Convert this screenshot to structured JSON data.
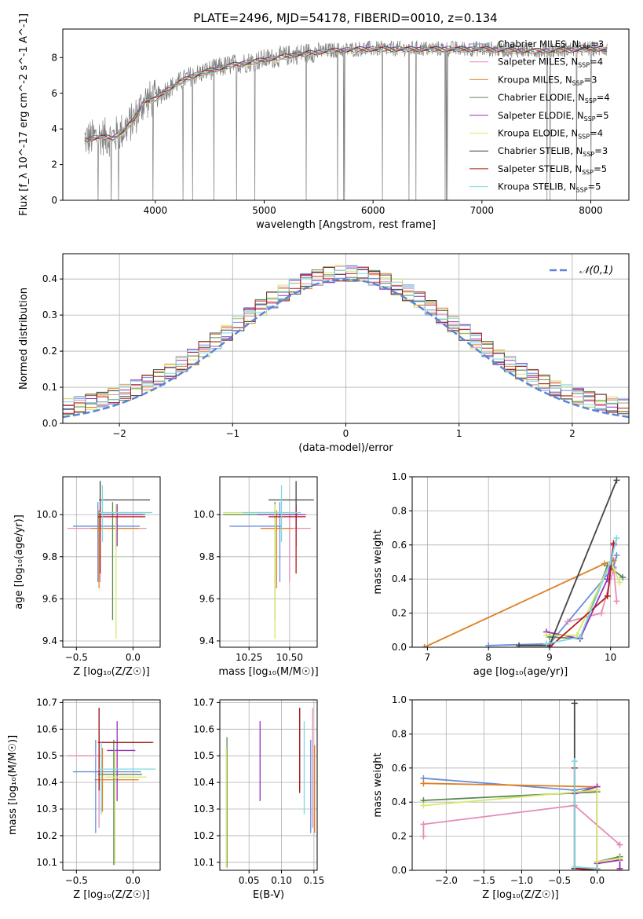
{
  "figure": {
    "title": "PLATE=2496, MJD=54178, FIBERID=0010, z=0.134"
  },
  "models": [
    {
      "name": "Chabrier MILES",
      "nssp": "3",
      "color": "#6a8fdb"
    },
    {
      "name": "Salpeter MILES",
      "nssp": "4",
      "color": "#e58bb8"
    },
    {
      "name": "Kroupa MILES",
      "nssp": "3",
      "color": "#e07f22"
    },
    {
      "name": "Chabrier ELODIE",
      "nssp": "4",
      "color": "#5c8a55"
    },
    {
      "name": "Salpeter ELODIE",
      "nssp": "5",
      "color": "#9a2fb8"
    },
    {
      "name": "Kroupa ELODIE",
      "nssp": "4",
      "color": "#d9e86a"
    },
    {
      "name": "Chabrier STELIB",
      "nssp": "3",
      "color": "#444444"
    },
    {
      "name": "Salpeter STELIB",
      "nssp": "5",
      "color": "#b01a1a"
    },
    {
      "name": "Kroupa STELIB",
      "nssp": "5",
      "color": "#7fd8e0"
    }
  ],
  "chart_data": [
    {
      "id": "spectrum",
      "type": "line",
      "xlabel": "wavelength [Angstrom, rest frame]",
      "ylabel": "Flux [f_λ 10^-17 erg cm^-2 s^-1 A^-1]",
      "xlim": [
        3150,
        8350
      ],
      "ylim": [
        0,
        9.6
      ],
      "xticks": [
        4000,
        5000,
        6000,
        7000,
        8000
      ],
      "yticks": [
        0,
        2,
        4,
        6,
        8
      ],
      "data_color": "#808080",
      "data_wavelength_range": [
        3350,
        8150
      ],
      "continuum": {
        "x": [
          3350,
          3500,
          3600,
          3700,
          3800,
          3900,
          4000,
          4100,
          4300,
          4500,
          4700,
          5000,
          5300,
          5600,
          5900,
          6200,
          6600,
          7000,
          7500,
          8000,
          8100
        ],
        "y": [
          3.4,
          3.6,
          3.5,
          3.9,
          4.5,
          5.6,
          5.7,
          6.2,
          6.9,
          7.3,
          7.6,
          7.9,
          8.2,
          8.4,
          8.5,
          8.5,
          8.5,
          8.5,
          8.4,
          8.5,
          8.5
        ]
      },
      "legend_loc": "upper right",
      "grid": false
    },
    {
      "id": "residuals",
      "type": "histogram",
      "xlabel": "(data-model)/error",
      "ylabel": "Normed distribution",
      "xlim": [
        -2.5,
        2.5
      ],
      "ylim": [
        0,
        0.47
      ],
      "xticks": [
        -2,
        -1,
        0,
        1,
        2
      ],
      "yticks": [
        0.0,
        0.1,
        0.2,
        0.3,
        0.4
      ],
      "reference": {
        "label": "𝒩(0,1)",
        "mean": 0,
        "sigma": 1,
        "color": "#5b86d6"
      },
      "legend_loc": "upper right",
      "grid": true
    },
    {
      "id": "age_vs_Z",
      "type": "errorbar",
      "xlabel": "Z [log₁₀(Z/Z☉)]",
      "ylabel": "age  [log₁₀(age/yr)]",
      "xlim": [
        -0.62,
        0.24
      ],
      "ylim": [
        9.37,
        10.18
      ],
      "xticks": [
        -0.5,
        0.0
      ],
      "yticks": [
        9.4,
        9.6,
        9.8,
        10.0
      ],
      "grid": true,
      "points": [
        {
          "x": -0.31,
          "x0": -0.53,
          "x1": 0.06,
          "y": 9.945,
          "y0": 9.68,
          "y1": 10.06
        },
        {
          "x": -0.29,
          "x0": -0.58,
          "x1": 0.12,
          "y": 9.935,
          "y0": 9.68,
          "y1": 10.0
        },
        {
          "x": -0.3,
          "x0": -0.37,
          "x1": 0.05,
          "y": 9.935,
          "y0": 9.65,
          "y1": 10.02
        },
        {
          "x": -0.18,
          "x0": -0.31,
          "x1": 0.11,
          "y": 10.0,
          "y0": 9.5,
          "y1": 10.06
        },
        {
          "x": -0.14,
          "x0": -0.28,
          "x1": 0.09,
          "y": 10.0,
          "y0": 9.85,
          "y1": 10.05
        },
        {
          "x": -0.15,
          "x0": -0.24,
          "x1": 0.14,
          "y": 10.01,
          "y0": 9.41,
          "y1": 10.05
        },
        {
          "x": -0.29,
          "x0": -0.3,
          "x1": 0.15,
          "y": 10.07,
          "y0": 9.94,
          "y1": 10.16
        },
        {
          "x": -0.29,
          "x0": -0.31,
          "x1": 0.11,
          "y": 9.99,
          "y0": 9.72,
          "y1": 10.03
        },
        {
          "x": -0.27,
          "x0": -0.3,
          "x1": 0.17,
          "y": 10.01,
          "y0": 9.87,
          "y1": 10.14
        }
      ]
    },
    {
      "id": "age_vs_mass",
      "type": "errorbar",
      "xlabel": "mass [log₁₀(M/M☉)]",
      "ylabel": "",
      "xlim": [
        10.07,
        10.67
      ],
      "ylim": [
        9.37,
        10.18
      ],
      "xticks": [
        10.25,
        10.5
      ],
      "yticks": [
        9.4,
        9.6,
        9.8,
        10.0
      ],
      "grid": true,
      "points": [
        {
          "x": 10.44,
          "x0": 10.13,
          "x1": 10.45,
          "y": 9.945,
          "y0": 9.68,
          "y1": 10.06
        },
        {
          "x": 10.5,
          "x0": 10.33,
          "x1": 10.63,
          "y": 9.935,
          "y0": 9.68,
          "y1": 10.0
        },
        {
          "x": 10.42,
          "x0": 10.32,
          "x1": 10.52,
          "y": 9.935,
          "y0": 9.65,
          "y1": 10.02
        },
        {
          "x": 10.41,
          "x0": 10.09,
          "x1": 10.56,
          "y": 10.0,
          "y0": 9.5,
          "y1": 10.06
        },
        {
          "x": 10.54,
          "x0": 10.3,
          "x1": 10.6,
          "y": 10.0,
          "y0": 9.85,
          "y1": 10.05
        },
        {
          "x": 10.41,
          "x0": 10.09,
          "x1": 10.55,
          "y": 10.01,
          "y0": 9.41,
          "y1": 10.05
        },
        {
          "x": 10.54,
          "x0": 10.37,
          "x1": 10.65,
          "y": 10.07,
          "y0": 9.94,
          "y1": 10.16
        },
        {
          "x": 10.54,
          "x0": 10.37,
          "x1": 10.6,
          "y": 9.99,
          "y0": 9.72,
          "y1": 10.03
        },
        {
          "x": 10.45,
          "x0": 10.21,
          "x1": 10.57,
          "y": 10.01,
          "y0": 9.87,
          "y1": 10.14
        }
      ]
    },
    {
      "id": "massweight_vs_age",
      "type": "line",
      "xlabel": "age  [log₁₀(age/yr)]",
      "ylabel": "mass weight",
      "xlim": [
        6.75,
        10.3
      ],
      "ylim": [
        0,
        1.0
      ],
      "xticks": [
        7,
        8,
        9,
        10
      ],
      "yticks": [
        0.0,
        0.2,
        0.4,
        0.6,
        0.8,
        1.0
      ],
      "grid": true,
      "series": [
        {
          "model": 0,
          "x": [
            8.0,
            9.0,
            10.05,
            10.1
          ],
          "y": [
            0.01,
            0.02,
            0.47,
            0.54
          ]
        },
        {
          "model": 1,
          "x": [
            9.3,
            9.85,
            10.05,
            10.1
          ],
          "y": [
            0.15,
            0.2,
            0.46,
            0.27
          ]
        },
        {
          "model": 2,
          "x": [
            6.95,
            9.9,
            10.05
          ],
          "y": [
            0.0,
            0.49,
            0.51
          ]
        },
        {
          "model": 3,
          "x": [
            9.0,
            9.5,
            9.95,
            10.2
          ],
          "y": [
            0.06,
            0.05,
            0.48,
            0.41
          ]
        },
        {
          "model": 4,
          "x": [
            8.95,
            9.5,
            9.95,
            10.05
          ],
          "y": [
            0.09,
            0.05,
            0.4,
            0.6
          ]
        },
        {
          "model": 5,
          "x": [
            8.95,
            9.45,
            10.0,
            10.15
          ],
          "y": [
            0.07,
            0.07,
            0.5,
            0.38
          ]
        },
        {
          "model": 6,
          "x": [
            8.5,
            9.0,
            10.1
          ],
          "y": [
            0.01,
            0.01,
            0.98
          ]
        },
        {
          "model": 7,
          "x": [
            9.0,
            9.95,
            10.05
          ],
          "y": [
            0.0,
            0.3,
            0.61
          ]
        },
        {
          "model": 8,
          "x": [
            8.95,
            9.5,
            10.0,
            10.1
          ],
          "y": [
            0.02,
            0.06,
            0.5,
            0.64
          ]
        }
      ]
    },
    {
      "id": "mass_vs_Z",
      "type": "errorbar",
      "xlabel": "Z [log₁₀(Z/Z☉)]",
      "ylabel": "mass [log₁₀(M/M☉)]",
      "xlim": [
        -0.62,
        0.24
      ],
      "ylim": [
        10.07,
        10.71
      ],
      "xticks": [
        -0.5,
        0.0
      ],
      "yticks": [
        10.1,
        10.2,
        10.3,
        10.4,
        10.5,
        10.6,
        10.7
      ],
      "grid": true,
      "points": [
        {
          "x": -0.33,
          "x0": -0.53,
          "x1": 0.07,
          "y": 10.44,
          "y0": 10.21,
          "y1": 10.56
        },
        {
          "x": -0.3,
          "x0": -0.58,
          "x1": -0.28,
          "y": 10.5,
          "y0": 10.23,
          "y1": 10.59
        },
        {
          "x": -0.27,
          "x0": -0.34,
          "x1": 0.05,
          "y": 10.41,
          "y0": 10.29,
          "y1": 10.53
        },
        {
          "x": -0.17,
          "x0": -0.31,
          "x1": 0.08,
          "y": 10.43,
          "y0": 10.09,
          "y1": 10.56
        },
        {
          "x": -0.14,
          "x0": -0.23,
          "x1": 0.02,
          "y": 10.52,
          "y0": 10.33,
          "y1": 10.63
        },
        {
          "x": -0.16,
          "x0": -0.25,
          "x1": 0.12,
          "y": 10.42,
          "y0": 10.09,
          "y1": 10.52
        },
        {
          "x": -0.3,
          "x0": -0.31,
          "x1": 0.17,
          "y": 10.55,
          "y0": 10.37,
          "y1": 10.68
        },
        {
          "x": -0.3,
          "x0": -0.31,
          "x1": 0.18,
          "y": 10.55,
          "y0": 10.37,
          "y1": 10.68
        },
        {
          "x": -0.28,
          "x0": -0.3,
          "x1": 0.2,
          "y": 10.45,
          "y0": 10.28,
          "y1": 10.55
        }
      ]
    },
    {
      "id": "mass_vs_EBV",
      "type": "errorbar",
      "xlabel": "E(B-V)",
      "ylabel": "",
      "xlim": [
        0.005,
        0.155
      ],
      "ylim": [
        10.07,
        10.71
      ],
      "xticks": [
        0.05,
        0.1,
        0.15
      ],
      "yticks": [
        10.1,
        10.2,
        10.3,
        10.4,
        10.5,
        10.6,
        10.7
      ],
      "grid": true,
      "points": [
        {
          "x": 0.145,
          "y0": 10.21,
          "y1": 10.56
        },
        {
          "x": 0.148,
          "y0": 10.23,
          "y1": 10.68
        },
        {
          "x": 0.151,
          "y0": 10.21,
          "y1": 10.54
        },
        {
          "x": 0.016,
          "y0": 10.08,
          "y1": 10.57
        },
        {
          "x": 0.067,
          "y0": 10.33,
          "y1": 10.63
        },
        {
          "x": 0.015,
          "y0": 10.08,
          "y1": 10.53
        },
        {
          "x": 0.128,
          "y0": 10.37,
          "y1": 10.68
        },
        {
          "x": 0.128,
          "y0": 10.36,
          "y1": 10.68
        },
        {
          "x": 0.135,
          "y0": 10.28,
          "y1": 10.63
        }
      ]
    },
    {
      "id": "massweight_vs_Z",
      "type": "line",
      "xlabel": "Z [log₁₀(Z/Z☉)]",
      "ylabel": "mass weight",
      "xlim": [
        -2.45,
        0.42
      ],
      "ylim": [
        0,
        1.0
      ],
      "xticks": [
        -2.0,
        -1.5,
        -1.0,
        -0.5,
        0.0
      ],
      "yticks": [
        0.0,
        0.2,
        0.4,
        0.6,
        0.8,
        1.0
      ],
      "grid": true,
      "series": [
        {
          "model": 0,
          "x": [
            -2.3,
            -0.3,
            0.0,
            0.0
          ],
          "y": [
            0.54,
            0.47,
            0.49,
            0.0
          ]
        },
        {
          "model": 1,
          "x": [
            -2.3,
            -2.3,
            -0.3,
            0.3,
            0.3
          ],
          "y": [
            0.2,
            0.27,
            0.38,
            0.15,
            0.15
          ]
        },
        {
          "model": 2,
          "x": [
            -2.3,
            0.0,
            0.0,
            0.3
          ],
          "y": [
            0.51,
            0.49,
            0.0,
            0.0
          ]
        },
        {
          "model": 3,
          "x": [
            -2.3,
            0.0,
            0.0,
            0.3
          ],
          "y": [
            0.41,
            0.46,
            0.05,
            0.08
          ]
        },
        {
          "model": 4,
          "x": [
            -0.3,
            0.0,
            0.0,
            0.3,
            0.3
          ],
          "y": [
            0.45,
            0.49,
            0.04,
            0.06,
            0.01
          ]
        },
        {
          "model": 5,
          "x": [
            -2.3,
            0.0,
            0.0,
            0.3
          ],
          "y": [
            0.38,
            0.47,
            0.05,
            0.07
          ]
        },
        {
          "model": 6,
          "x": [
            -0.3,
            -0.3,
            0.0
          ],
          "y": [
            0.98,
            0.01,
            0.01
          ]
        },
        {
          "model": 7,
          "x": [
            -0.3,
            -0.3,
            0.0
          ],
          "y": [
            0.6,
            0.01,
            0.0
          ]
        },
        {
          "model": 8,
          "x": [
            -0.3,
            -0.3,
            0.0
          ],
          "y": [
            0.64,
            0.02,
            0.01
          ]
        }
      ]
    }
  ]
}
